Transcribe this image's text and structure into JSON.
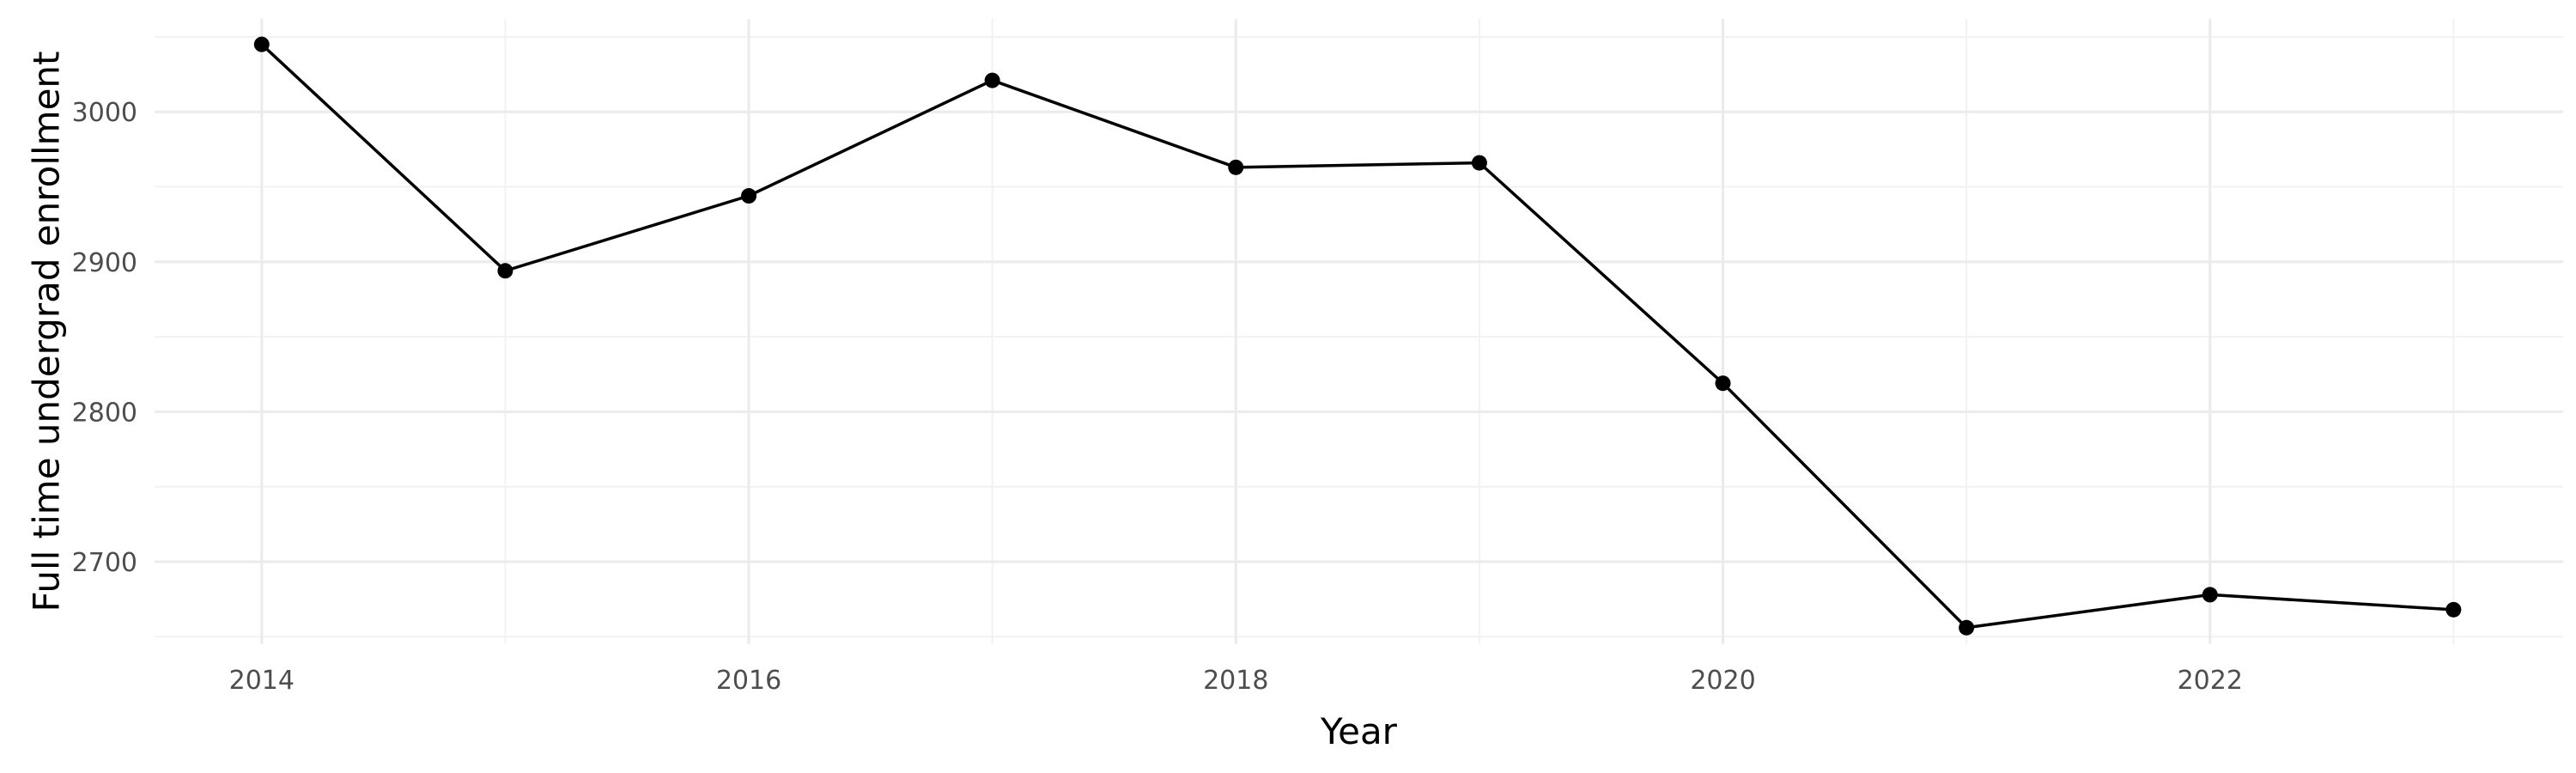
{
  "chart_data": {
    "type": "line",
    "xlabel": "Year",
    "ylabel": "Full time undergrad enrollment",
    "x_ticks": [
      2014,
      2016,
      2018,
      2020,
      2022
    ],
    "x_tick_labels": [
      "2014",
      "2016",
      "2018",
      "2020",
      "2022"
    ],
    "y_ticks": [
      2700,
      2800,
      2900,
      3000
    ],
    "y_tick_labels": [
      "2700",
      "2800",
      "2900",
      "3000"
    ],
    "xlim": [
      2013.56,
      2023.45
    ],
    "ylim": [
      2645,
      3062
    ],
    "grid": true,
    "series": [
      {
        "x": [
          2014,
          2015,
          2016,
          2017,
          2018,
          2019,
          2020,
          2021,
          2022,
          2023
        ],
        "values": [
          3045,
          2894,
          2944,
          3021,
          2963,
          2966,
          2819,
          2656,
          2678,
          2668
        ]
      }
    ],
    "colors": {
      "line": "#000000",
      "point": "#000000"
    }
  }
}
